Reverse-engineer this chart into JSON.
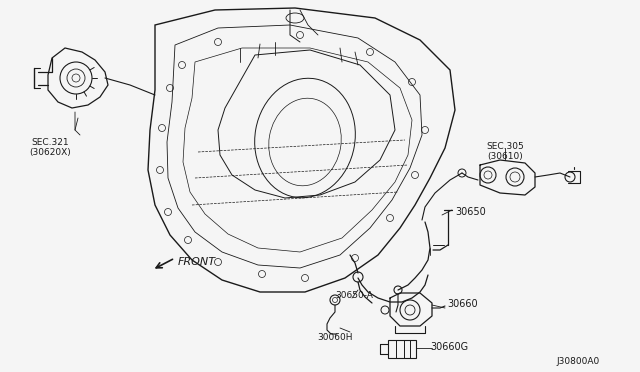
{
  "background_color": "#f5f5f5",
  "line_color": "#1a1a1a",
  "diagram_code": "J30800A0",
  "labels": {
    "sec321": "SEC.321\n(30620X)",
    "sec305": "SEC.305\n(30610)",
    "part30650": "30650",
    "part30650A": "30650-A",
    "part30660": "30660",
    "part30660G": "30660G",
    "part30060H": "30060H",
    "front": "FRONT"
  },
  "figsize": [
    6.4,
    3.72
  ],
  "dpi": 100
}
